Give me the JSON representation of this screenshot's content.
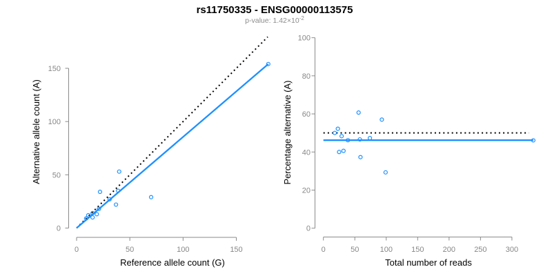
{
  "header": {
    "title": "rs11750335 - ENSG00000113575",
    "subtitle_text": "p-value: 1.42×10",
    "subtitle_exponent": "-2"
  },
  "colors": {
    "accent_blue": "#1E90FF",
    "line_black": "#000000",
    "axis_gray": "#8a8a8a",
    "tick_label_gray": "#878787",
    "axis_title_black": "#000000",
    "subtitle_gray": "#8c8c8c",
    "background": "#ffffff"
  },
  "chart_data": [
    {
      "id": "allele-counts",
      "type": "scatter",
      "xlabel": "Reference allele count (G)",
      "ylabel": "Alternative allele count (A)",
      "x_ticks": [
        0,
        50,
        100,
        150
      ],
      "y_ticks": [
        0,
        50,
        100,
        150
      ],
      "xlim": [
        0,
        180
      ],
      "ylim": [
        0,
        180
      ],
      "grid": false,
      "point_color": "#1E90FF",
      "x": [
        9,
        11,
        15,
        15,
        19,
        21,
        22,
        31,
        37,
        39,
        40,
        70,
        180
      ],
      "y": [
        9,
        12,
        10,
        14,
        13,
        18,
        34,
        27,
        22,
        35,
        53,
        29,
        154
      ],
      "lines": [
        {
          "name": "identity-dotted",
          "style": "dotted",
          "color": "#000000",
          "x1": 0,
          "y1": 0,
          "x2": 179.5,
          "y2": 179.5
        },
        {
          "name": "fit-solid",
          "style": "solid",
          "color": "#1E90FF",
          "x1": 0,
          "y1": 0,
          "x2": 180,
          "y2": 154
        }
      ]
    },
    {
      "id": "percentage-alternative",
      "type": "scatter",
      "xlabel": "Total number of reads",
      "ylabel": "Percentage alternative (A)",
      "x_ticks": [
        0,
        50,
        100,
        150,
        200,
        250,
        300
      ],
      "y_ticks": [
        0,
        20,
        40,
        60,
        80,
        100
      ],
      "xlim": [
        0,
        334
      ],
      "ylim": [
        0,
        100
      ],
      "grid": false,
      "point_color": "#1E90FF",
      "x": [
        18,
        23,
        25,
        29,
        32,
        39,
        56,
        58,
        59,
        74,
        93,
        99,
        334
      ],
      "y": [
        50.0,
        52.2,
        40.0,
        48.3,
        40.6,
        46.2,
        60.7,
        46.6,
        37.3,
        47.3,
        57.0,
        29.3,
        46.1
      ],
      "lines": [
        {
          "name": "expected-50-percent-dotted",
          "style": "dotted",
          "color": "#000000",
          "x1": 0,
          "y1": 50,
          "x2": 327,
          "y2": 50
        },
        {
          "name": "fit-solid",
          "style": "solid",
          "color": "#1E90FF",
          "x1": 0,
          "y1": 46.2,
          "x2": 334,
          "y2": 46.2
        }
      ]
    }
  ]
}
